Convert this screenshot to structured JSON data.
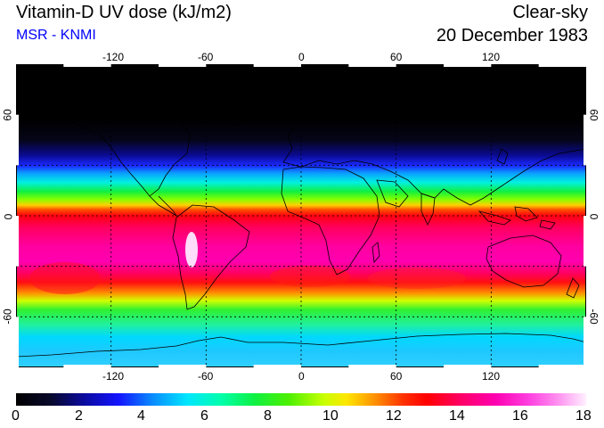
{
  "header": {
    "title": "Vitamin-D UV dose (kJ/m2)",
    "subtitle": "MSR - KNMI",
    "condition": "Clear-sky",
    "date": "20 December 1983"
  },
  "map": {
    "lon_ticks": [
      "-120",
      "-60",
      "0",
      "60",
      "120"
    ],
    "lat_ticks": [
      "60",
      "0",
      "-60"
    ],
    "lon_values": [
      -120,
      -60,
      0,
      60,
      120
    ],
    "lat_values": [
      60,
      0,
      -60
    ],
    "lon_range": [
      -180,
      180
    ],
    "lat_range": [
      -90,
      90
    ],
    "projection": "equirectangular"
  },
  "colorbar": {
    "labels": [
      "0",
      "2",
      "4",
      "6",
      "8",
      "10",
      "12",
      "14",
      "16",
      "18"
    ],
    "min": 0,
    "max": 18,
    "colors": {
      "low": "#000000",
      "mid_blue": "#1414ff",
      "cyan": "#00e6ff",
      "green": "#10f040",
      "yellow": "#ffe600",
      "red": "#ff0000",
      "magenta": "#ff00b0",
      "high": "#fff0ff"
    }
  }
}
